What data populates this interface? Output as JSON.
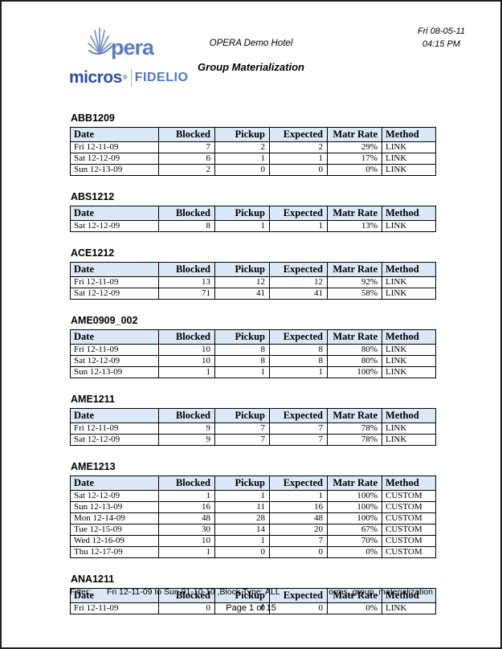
{
  "page": {
    "hotel_name": "OPERA Demo Hotel",
    "report_title": "Group Materialization",
    "print_date": "Fri 08-05-11",
    "print_time": "04:15 PM"
  },
  "logos": {
    "opera_text": "pera",
    "micros_text": "micros",
    "registered_mark": "®",
    "fidelio_text": "FIDELIO"
  },
  "table": {
    "columns": [
      {
        "label": "Date",
        "align": "left"
      },
      {
        "label": "Blocked",
        "align": "right"
      },
      {
        "label": "Pickup",
        "align": "right"
      },
      {
        "label": "Expected",
        "align": "right"
      },
      {
        "label": "Matr Rate",
        "align": "right"
      },
      {
        "label": "Method",
        "align": "left"
      }
    ]
  },
  "groups": [
    {
      "id": "ABB1209",
      "rows": [
        [
          "Fri 12-11-09",
          "7",
          "2",
          "2",
          "29%",
          "LINK"
        ],
        [
          "Sat 12-12-09",
          "6",
          "1",
          "1",
          "17%",
          "LINK"
        ],
        [
          "Sun 12-13-09",
          "2",
          "0",
          "0",
          "0%",
          "LINK"
        ]
      ]
    },
    {
      "id": "ABS1212",
      "rows": [
        [
          "Sat 12-12-09",
          "8",
          "1",
          "1",
          "13%",
          "LINK"
        ]
      ]
    },
    {
      "id": "ACE1212",
      "rows": [
        [
          "Fri 12-11-09",
          "13",
          "12",
          "12",
          "92%",
          "LINK"
        ],
        [
          "Sat 12-12-09",
          "71",
          "41",
          "41",
          "58%",
          "LINK"
        ]
      ]
    },
    {
      "id": "AME0909_002",
      "rows": [
        [
          "Fri 12-11-09",
          "10",
          "8",
          "8",
          "80%",
          "LINK"
        ],
        [
          "Sat 12-12-09",
          "10",
          "8",
          "8",
          "80%",
          "LINK"
        ],
        [
          "Sun 12-13-09",
          "1",
          "1",
          "1",
          "100%",
          "LINK"
        ]
      ]
    },
    {
      "id": "AME1211",
      "rows": [
        [
          "Fri 12-11-09",
          "9",
          "7",
          "7",
          "78%",
          "LINK"
        ],
        [
          "Sat 12-12-09",
          "9",
          "7",
          "7",
          "78%",
          "LINK"
        ]
      ]
    },
    {
      "id": "AME1213",
      "rows": [
        [
          "Sat 12-12-09",
          "1",
          "1",
          "1",
          "100%",
          "CUSTOM"
        ],
        [
          "Sun 12-13-09",
          "16",
          "11",
          "16",
          "100%",
          "CUSTOM"
        ],
        [
          "Mon 12-14-09",
          "48",
          "28",
          "48",
          "100%",
          "CUSTOM"
        ],
        [
          "Tue 12-15-09",
          "30",
          "14",
          "20",
          "67%",
          "CUSTOM"
        ],
        [
          "Wed 12-16-09",
          "10",
          "1",
          "7",
          "70%",
          "CUSTOM"
        ],
        [
          "Thu 12-17-09",
          "1",
          "0",
          "0",
          "0%",
          "CUSTOM"
        ]
      ]
    },
    {
      "id": "ANA1211",
      "rows": [
        [
          "Fri 12-11-09",
          "0",
          "0",
          "0",
          "0%",
          "LINK"
        ]
      ]
    }
  ],
  "footer": {
    "filter_label": "Filter:",
    "filter_value": "Fri 12-11-09 to Sun 01-10-10 ,Block Type: ALL",
    "report_id": "orms_group_materialization",
    "page_info": "Page 1 of 15"
  },
  "colors": {
    "table_header_bg": "#dbe8f5",
    "table_border": "#000000",
    "opera_blue": "#5e7cb8",
    "micros_blue": "#2b51a3",
    "fidelio_blue": "#4c7abf"
  }
}
